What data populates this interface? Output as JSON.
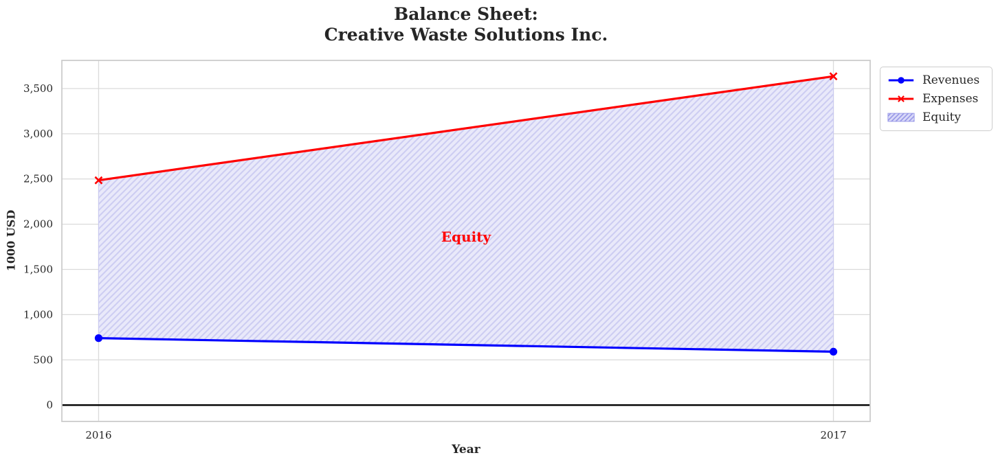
{
  "title": {
    "line1": "Balance Sheet:",
    "line2": "Creative Waste Solutions Inc."
  },
  "axes": {
    "xlabel": "Year",
    "ylabel": "1000 USD"
  },
  "annotation": {
    "text": "Equity"
  },
  "legend": {
    "items": [
      {
        "label": "Revenues",
        "swatch": "line-with-circle-marker"
      },
      {
        "label": "Expenses",
        "swatch": "line-with-x-marker"
      },
      {
        "label": "Equity",
        "swatch": "hatched-patch"
      }
    ]
  },
  "colors": {
    "revenues": "#0000ff",
    "expenses": "#ff0000",
    "annotation_text": "#ff0000",
    "equity_fill_bg": "#e9e9fa",
    "equity_hatch": "#cdcdf2",
    "equity_edge": "#c9c9f0",
    "legend_fill_bg": "#d9d9f8",
    "legend_hatch": "#9494e6",
    "grid": "#dadada",
    "spine": "#cccccc",
    "text": "#262626",
    "zero_line": "#000000"
  },
  "chart_data": {
    "type": "area",
    "title": "Balance Sheet:\nCreative Waste Solutions Inc.",
    "xlabel": "Year",
    "ylabel": "1000 USD",
    "x": [
      2016,
      2017
    ],
    "series": [
      {
        "name": "Revenues",
        "values": [
          740,
          590
        ],
        "color": "#0000ff",
        "marker": "circle"
      },
      {
        "name": "Expenses",
        "values": [
          2485,
          3635
        ],
        "color": "#ff0000",
        "marker": "x"
      }
    ],
    "fill_between": {
      "label": "Equity",
      "between": [
        "Revenues",
        "Expenses"
      ],
      "hatch": "/",
      "color": "#0000ff",
      "alpha": 0.1
    },
    "xlim": [
      2015.95,
      2017.05
    ],
    "ylim": [
      -181,
      3811
    ],
    "xticks": [
      2016,
      2017
    ],
    "xtick_labels": [
      "2016",
      "2017"
    ],
    "yticks": [
      0,
      500,
      1000,
      1500,
      2000,
      2500,
      3000,
      3500
    ],
    "ytick_labels": [
      "0",
      "500",
      "1,000",
      "1,500",
      "2,000",
      "2,500",
      "3,000",
      "3,500"
    ],
    "grid": true,
    "zero_line_y": 0,
    "legend_position": "outside upper right"
  }
}
